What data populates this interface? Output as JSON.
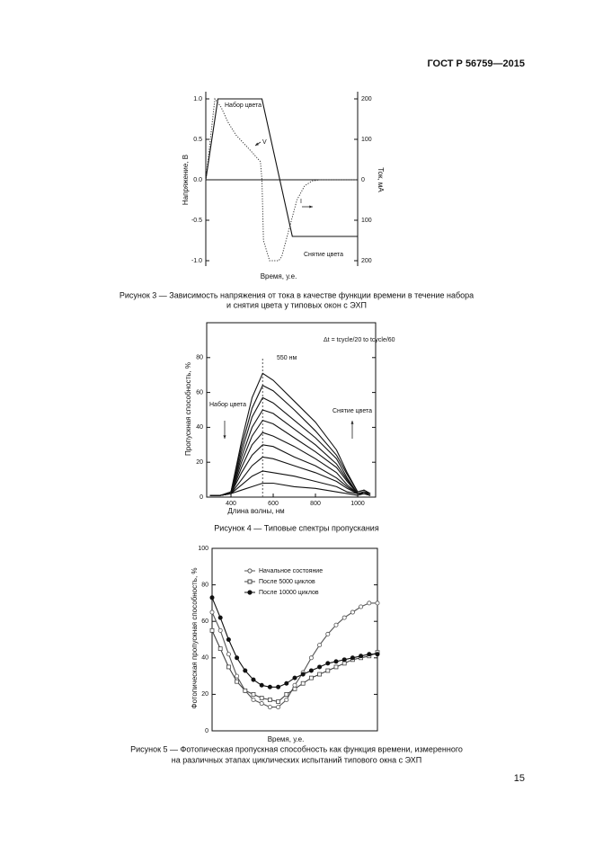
{
  "header": {
    "standard": "ГОСТ Р 56759—2015"
  },
  "chart_data": [
    {
      "type": "line",
      "ylabel": "Напряжение, В",
      "y2label": "Ток, мА",
      "xlabel": "Время, у.е.",
      "xlim": [
        0,
        100
      ],
      "ylim": [
        -1.0,
        1.0
      ],
      "yticks": [
        {
          "value": 1.0,
          "label": "1.0"
        },
        0.5,
        {
          "value": 0.0,
          "label": "0.0"
        },
        -0.5,
        {
          "value": -1.0,
          "label": "-1.0"
        }
      ],
      "y2lim": [
        -200,
        200
      ],
      "y2ticks": [
        200,
        100,
        0,
        {
          "value": -100,
          "label": "100"
        },
        {
          "value": -200,
          "label": "200"
        }
      ],
      "annotations": [
        "Набор цвета",
        "V",
        "I",
        "Снятие цвета"
      ],
      "series": [
        {
          "color": "#111111",
          "linestyle": "solid",
          "x": [
            0,
            8,
            37,
            57,
            100
          ],
          "values": [
            0.0,
            1.0,
            1.0,
            -0.7,
            -0.7
          ]
        },
        {
          "color": "#333333",
          "linestyle": "dotted",
          "axis": "y2",
          "x": [
            0,
            3,
            6,
            10,
            15,
            20,
            25,
            30,
            36,
            37,
            38,
            42,
            48,
            50,
            55,
            60,
            65,
            70,
            75,
            100
          ],
          "values": [
            0,
            100,
            200,
            180,
            140,
            110,
            90,
            70,
            45,
            0,
            -150,
            -200,
            -200,
            -190,
            -120,
            -50,
            -15,
            -3,
            0,
            0
          ]
        }
      ]
    },
    {
      "type": "line",
      "ylabel": "Пропускная способность, %",
      "xlabel": "Длина волны, нм",
      "xlim": [
        285,
        1085
      ],
      "xticks": [
        400,
        600,
        800,
        1000
      ],
      "ylim": [
        0,
        100
      ],
      "yticks": [
        0,
        20,
        40,
        60,
        80
      ],
      "reference_line": 550,
      "annotations": [
        "Набор цвета",
        "Снятие цвета",
        "550 нм",
        "Δt = tcycle/20  to  tcycle/60"
      ],
      "x": [
        300,
        350,
        400,
        450,
        500,
        550,
        600,
        700,
        800,
        900,
        950,
        1000,
        1030,
        1060
      ],
      "series": [
        {
          "color": "#111111",
          "values": [
            1,
            1,
            3,
            32,
            57,
            71,
            67,
            55,
            43,
            27,
            14,
            3,
            4,
            2
          ]
        },
        {
          "color": "#111111",
          "values": [
            1,
            1,
            3,
            29,
            51,
            64,
            61,
            50,
            38,
            24,
            13,
            3,
            4,
            2
          ]
        },
        {
          "color": "#111111",
          "values": [
            1,
            1,
            2,
            26,
            46,
            57,
            54,
            44,
            34,
            22,
            11,
            2,
            3,
            2
          ]
        },
        {
          "color": "#111111",
          "values": [
            1,
            1,
            2,
            23,
            40,
            50,
            48,
            39,
            30,
            19,
            10,
            2,
            3,
            2
          ]
        },
        {
          "color": "#111111",
          "values": [
            1,
            1,
            2,
            20,
            35,
            44,
            42,
            34,
            26,
            17,
            9,
            2,
            3,
            1
          ]
        },
        {
          "color": "#111111",
          "values": [
            1,
            1,
            2,
            17,
            30,
            37,
            35,
            29,
            22,
            14,
            7,
            2,
            2,
            1
          ]
        },
        {
          "color": "#111111",
          "values": [
            1,
            1,
            2,
            14,
            24,
            30,
            29,
            23,
            18,
            11,
            6,
            2,
            2,
            1
          ]
        },
        {
          "color": "#111111",
          "values": [
            1,
            1,
            2,
            10,
            18,
            23,
            22,
            18,
            14,
            9,
            5,
            2,
            2,
            1
          ]
        },
        {
          "color": "#111111",
          "values": [
            1,
            1,
            2,
            7,
            12,
            15,
            14,
            12,
            9,
            6,
            3,
            2,
            2,
            1
          ]
        },
        {
          "color": "#111111",
          "values": [
            1,
            1,
            2,
            4,
            6,
            8,
            8,
            6,
            5,
            3,
            2,
            1,
            2,
            1
          ]
        }
      ]
    },
    {
      "type": "line",
      "ylabel": "Фотопическая пропускная способность, %",
      "xlabel": "Время, у.е.",
      "xlim": [
        0,
        100
      ],
      "ylim": [
        0,
        100
      ],
      "yticks": [
        0,
        20,
        40,
        60,
        80,
        100
      ],
      "x": [
        0,
        5,
        10,
        15,
        20,
        25,
        30,
        35,
        40,
        45,
        50,
        55,
        60,
        65,
        70,
        75,
        80,
        85,
        90,
        95,
        100
      ],
      "series": [
        {
          "name": "Начальное состояние",
          "color": "#555555",
          "marker": "circle",
          "values": [
            65,
            55,
            42,
            30,
            22,
            17,
            15,
            13,
            13,
            17,
            25,
            32,
            40,
            47,
            53,
            58,
            62,
            65,
            68,
            70,
            70
          ]
        },
        {
          "name": "После 5000 циклов",
          "color": "#444444",
          "marker": "square",
          "values": [
            55,
            45,
            35,
            27,
            22,
            20,
            18,
            17,
            16,
            20,
            23,
            26,
            29,
            31,
            33,
            35,
            37,
            39,
            40,
            41,
            43
          ]
        },
        {
          "name": "После 10000 циклов",
          "color": "#111111",
          "marker": "filled-circle",
          "values": [
            73,
            62,
            50,
            40,
            33,
            28,
            25,
            24,
            24,
            26,
            29,
            31,
            33,
            35,
            37,
            38,
            39,
            40,
            41,
            42,
            42
          ]
        }
      ]
    }
  ],
  "captions": [
    [
      "Рисунок 3 — Зависимость напряжения от тока в качестве функции времени в течение набора",
      "и снятия цвета у типовых окон с ЭХП"
    ],
    [
      "Рисунок 4 — Типовые спектры пропускания"
    ],
    [
      "Рисунок 5 — Фотопическая пропускная способность как функция времени, измеренного",
      "на различных этапах циклических испытаний типового окна с ЭХП"
    ]
  ],
  "page_number": "15"
}
